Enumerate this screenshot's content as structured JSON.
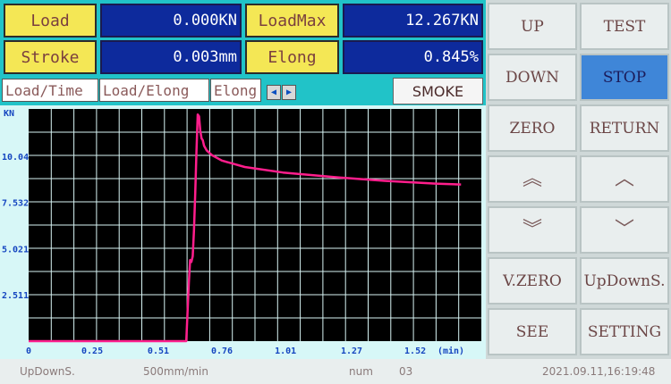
{
  "readouts": {
    "load_label": "Load",
    "load_value": "0.000KN",
    "loadmax_label": "LoadMax",
    "loadmax_value": "12.267KN",
    "stroke_label": "Stroke",
    "stroke_value": "0.003mm",
    "elong_label": "Elong",
    "elong_value": "0.845%"
  },
  "tabs": [
    "Load/Time",
    "Load/Elong",
    "Elong"
  ],
  "tab_arrows": {
    "left": "◀",
    "right": "▶"
  },
  "smoke_label": "SMOKE",
  "buttons": {
    "up": "UP",
    "test": "TEST",
    "down": "DOWN",
    "stop": "STOP",
    "zero": "ZERO",
    "return": "RETURN",
    "fast_up_chevron": "︽",
    "slow_up_chevron": "︿",
    "fast_down_chevron": "︾",
    "slow_down_chevron": "﹀",
    "vzero": "V.ZERO",
    "updowns": "UpDownS.",
    "see": "SEE",
    "setting": "SETTING"
  },
  "status": {
    "mode": "UpDownS.",
    "speed": "500mm/min",
    "num_label": "num",
    "num_value": "03",
    "datetime": "2021.09.11,16:19:48"
  },
  "colors": {
    "chart_bg": "#000000",
    "grid": "#d8f4f4",
    "curve": "#ff1e8c",
    "active_button": "#3f86d8"
  },
  "chart_data": {
    "type": "line",
    "ylabel": "KN",
    "xlabel": "(min)",
    "xlim": [
      0,
      1.78
    ],
    "ylim": [
      0,
      12.6
    ],
    "x_ticks": [
      "0",
      "0.25",
      "0.51",
      "0.76",
      "1.01",
      "1.27",
      "1.52"
    ],
    "y_ticks": [
      "2.511",
      "5.021",
      "7.532",
      "10.04"
    ],
    "series": [
      {
        "x": [
          0,
          0.62,
          0.63,
          0.635,
          0.64,
          0.645,
          0.65,
          0.655,
          0.66,
          0.665,
          0.67,
          0.675,
          0.68,
          0.685,
          0.69,
          0.7,
          0.72,
          0.76,
          0.85,
          1.0,
          1.2,
          1.4,
          1.6,
          1.7
        ],
        "y": [
          0,
          0,
          3.2,
          4.4,
          4.3,
          4.6,
          6.0,
          8.0,
          10.3,
          12.3,
          12.2,
          11.4,
          11.0,
          10.9,
          10.6,
          10.35,
          10.1,
          9.8,
          9.45,
          9.15,
          8.9,
          8.7,
          8.55,
          8.5
        ]
      }
    ]
  }
}
